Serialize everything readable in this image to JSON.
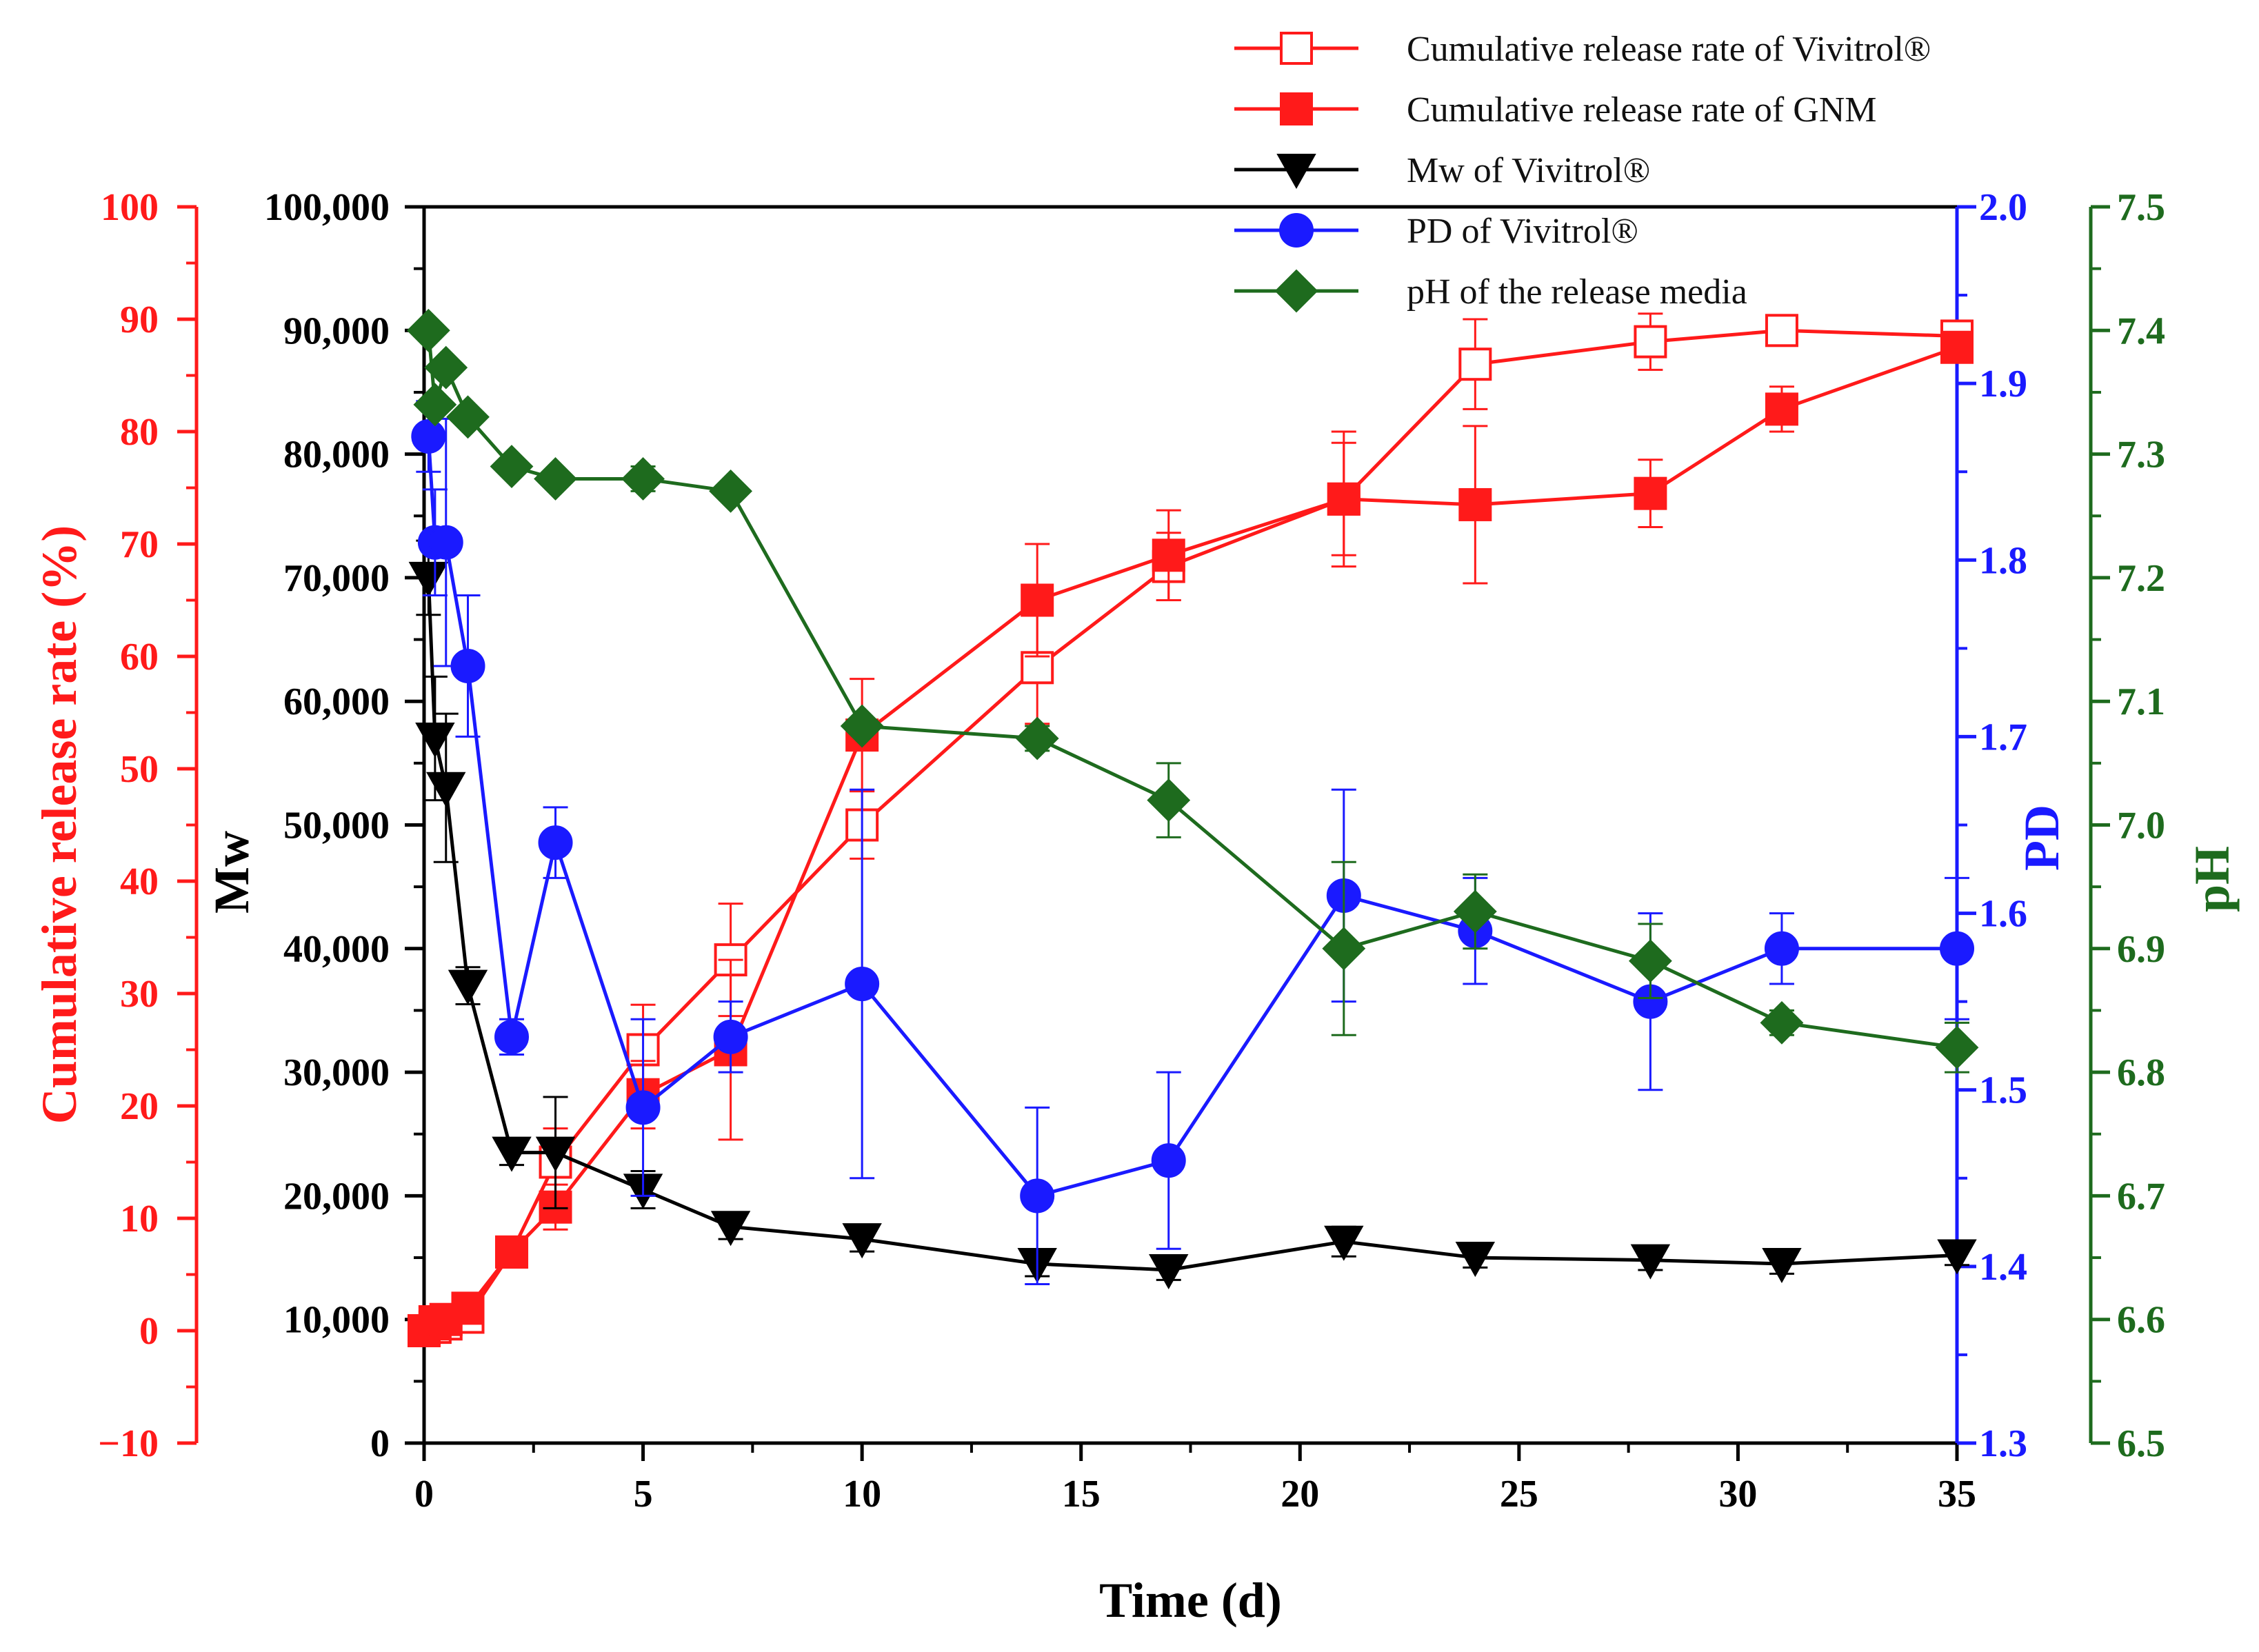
{
  "chart_data": {
    "type": "line",
    "x_axis": {
      "label": "Time (d)",
      "range": [
        0,
        35
      ],
      "ticks": [
        "0",
        "5",
        "10",
        "15",
        "20",
        "25",
        "30",
        "35"
      ]
    },
    "axes": {
      "release": {
        "label": "Cumulative release rate (%)",
        "range": [
          -10,
          100
        ],
        "color": "#ff1a1a",
        "ticks": [
          "−10",
          "0",
          "10",
          "20",
          "30",
          "40",
          "50",
          "60",
          "70",
          "80",
          "90",
          "100"
        ]
      },
      "mw": {
        "label": "Mw",
        "range": [
          0,
          100000
        ],
        "color": "#000000",
        "ticks": [
          "0",
          "10,000",
          "20,000",
          "30,000",
          "40,000",
          "50,000",
          "60,000",
          "70,000",
          "80,000",
          "90,000",
          "100,000"
        ]
      },
      "pd": {
        "label": "PD",
        "range": [
          1.3,
          2.0
        ],
        "color": "#1a1aff",
        "ticks": [
          "1.3",
          "1.4",
          "1.5",
          "1.6",
          "1.7",
          "1.8",
          "1.9",
          "2.0"
        ]
      },
      "ph": {
        "label": "pH",
        "range": [
          6.5,
          7.5
        ],
        "color": "#1e6b1e",
        "ticks": [
          "6.5",
          "6.6",
          "6.7",
          "6.8",
          "6.9",
          "7.0",
          "7.1",
          "7.2",
          "7.3",
          "7.4",
          "7.5"
        ]
      }
    },
    "series": [
      {
        "name": "Cumulative release rate of Vivitrol®",
        "axis": "release",
        "marker": "square-open",
        "color": "#ff1a1a",
        "x": [
          0,
          0.25,
          0.5,
          1,
          2,
          3,
          5,
          7,
          10,
          14,
          17,
          21,
          24,
          28,
          31,
          35
        ],
        "y": [
          0,
          0.3,
          0.6,
          1.2,
          7,
          15,
          25,
          33,
          45,
          59,
          68,
          74,
          86,
          88,
          89,
          88.5
        ],
        "err": [
          0.5,
          0.5,
          0.5,
          0.8,
          1,
          3,
          4,
          5,
          3,
          5,
          3,
          5,
          4,
          2.5,
          1,
          1
        ]
      },
      {
        "name": "Cumulative release rate of GNM",
        "axis": "release",
        "marker": "square",
        "color": "#ff1a1a",
        "x": [
          0,
          0.25,
          0.5,
          1,
          2,
          3,
          5,
          7,
          10,
          14,
          17,
          21,
          24,
          28,
          31,
          35
        ],
        "y": [
          0,
          0.8,
          1,
          2,
          7,
          11,
          21,
          25,
          53,
          65,
          69,
          74,
          73.5,
          74.5,
          82,
          87.5
        ],
        "err": [
          0.5,
          0.5,
          0.5,
          0.8,
          1,
          2,
          3,
          8,
          5,
          5,
          4,
          6,
          7,
          3,
          2,
          1
        ]
      },
      {
        "name": "Mw of Vivitrol®",
        "axis": "mw",
        "marker": "triangle-down",
        "color": "#000000",
        "x": [
          0.1,
          0.25,
          0.5,
          1,
          2,
          3,
          5,
          7,
          10,
          14,
          17,
          21,
          24,
          28,
          31,
          35
        ],
        "y": [
          70000,
          57000,
          53000,
          37000,
          23500,
          23500,
          20500,
          17500,
          16500,
          14500,
          14000,
          16300,
          15000,
          14800,
          14500,
          15200
        ],
        "err": [
          3000,
          5000,
          6000,
          1500,
          1000,
          4500,
          1500,
          1000,
          1000,
          1000,
          800,
          1200,
          800,
          800,
          800,
          800
        ]
      },
      {
        "name": "PD of  Vivitrol®",
        "axis": "pd",
        "marker": "circle",
        "color": "#1a1aff",
        "x": [
          0.1,
          0.25,
          0.5,
          1,
          2,
          3,
          5,
          7,
          10,
          14,
          17,
          21,
          24,
          28,
          31,
          35
        ],
        "y": [
          1.87,
          1.81,
          1.81,
          1.74,
          1.53,
          1.64,
          1.49,
          1.53,
          1.56,
          1.44,
          1.46,
          1.61,
          1.59,
          1.55,
          1.58,
          1.58
        ],
        "err": [
          0.02,
          0.03,
          0.07,
          0.04,
          0.01,
          0.02,
          0.05,
          0.02,
          0.11,
          0.05,
          0.05,
          0.06,
          0.03,
          0.05,
          0.02,
          0.04
        ]
      },
      {
        "name": "pH of the release media",
        "axis": "ph",
        "marker": "diamond",
        "color": "#1e6b1e",
        "x": [
          0.1,
          0.25,
          0.5,
          1,
          2,
          3,
          5,
          7,
          10,
          14,
          17,
          21,
          24,
          28,
          31,
          35
        ],
        "y": [
          7.4,
          7.34,
          7.37,
          7.33,
          7.29,
          7.28,
          7.28,
          7.27,
          7.08,
          7.07,
          7.02,
          6.9,
          6.93,
          6.89,
          6.84,
          6.82
        ],
        "err": [
          0.005,
          0.005,
          0.005,
          0.005,
          0.005,
          0.005,
          0.01,
          0.005,
          0.005,
          0.01,
          0.03,
          0.07,
          0.03,
          0.03,
          0.01,
          0.02
        ]
      }
    ]
  }
}
